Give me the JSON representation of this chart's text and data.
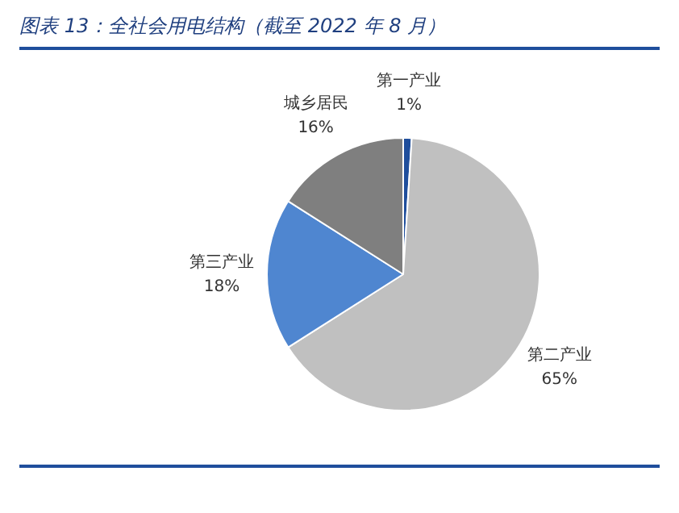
{
  "chart_data": {
    "type": "pie",
    "title": "图表 13：全社会用电结构（截至 2022 年 8 月）",
    "categories": [
      "第一产业",
      "第二产业",
      "第三产业",
      "城乡居民"
    ],
    "values": [
      1,
      65,
      18,
      16
    ],
    "colors": [
      "#1f4e9c",
      "#c0c0c0",
      "#4f86d0",
      "#7f7f7f"
    ],
    "value_labels": [
      "1%",
      "65%",
      "18%",
      "16%"
    ],
    "legend": false
  }
}
